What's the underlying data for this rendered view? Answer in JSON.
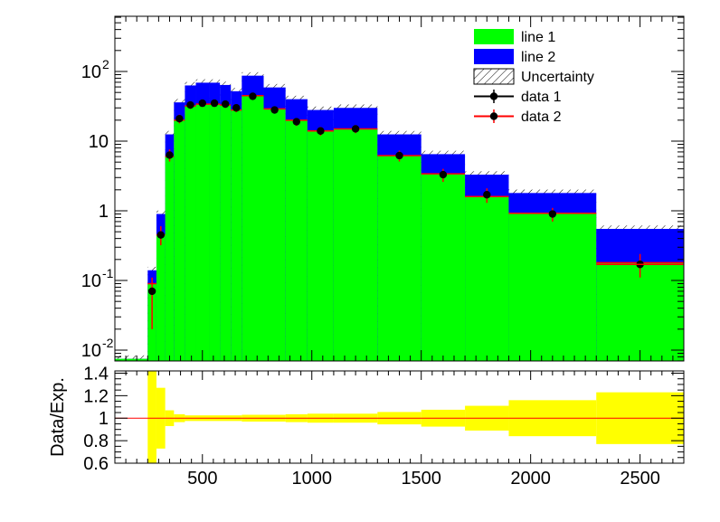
{
  "chart_data": [
    {
      "type": "histogram-stack",
      "scale": "log",
      "ylim": [
        0.0075,
        600
      ],
      "xlim": [
        100,
        2700
      ],
      "colors": {
        "line_1": "#00ff00",
        "line_2": "#0000ff",
        "data_1": "#000000",
        "data_2": "#ff0000"
      },
      "legend": {
        "position": "top-right",
        "entries": [
          {
            "key": "line_1",
            "label": "line 1",
            "style": "fill"
          },
          {
            "key": "line_2",
            "label": "line 2",
            "style": "fill"
          },
          {
            "key": "uncertainty",
            "label": "Uncertainty",
            "style": "hatch"
          },
          {
            "key": "data_1",
            "label": "data 1",
            "style": "marker"
          },
          {
            "key": "data_2",
            "label": "data 2",
            "style": "marker"
          }
        ]
      },
      "y_ticks": [
        {
          "value": 0.01,
          "label_base": "10",
          "label_exp": "-2"
        },
        {
          "value": 0.1,
          "label_base": "10",
          "label_exp": "-1"
        },
        {
          "value": 1,
          "label_base": "1",
          "label_exp": ""
        },
        {
          "value": 10,
          "label_base": "10",
          "label_exp": ""
        },
        {
          "value": 100,
          "label_base": "10",
          "label_exp": "2"
        }
      ],
      "bins": [
        {
          "lo": 100,
          "hi": 250,
          "line1": 0.0075,
          "total": 0.0075
        },
        {
          "lo": 250,
          "hi": 290,
          "line1": 0.09,
          "total": 0.14
        },
        {
          "lo": 290,
          "hi": 330,
          "line1": 0.45,
          "total": 0.9
        },
        {
          "lo": 330,
          "hi": 370,
          "line1": 6,
          "total": 12.5
        },
        {
          "lo": 370,
          "hi": 420,
          "line1": 20,
          "total": 36
        },
        {
          "lo": 420,
          "hi": 470,
          "line1": 32,
          "total": 63
        },
        {
          "lo": 470,
          "hi": 530,
          "line1": 34,
          "total": 69
        },
        {
          "lo": 530,
          "hi": 580,
          "line1": 34,
          "total": 69
        },
        {
          "lo": 580,
          "hi": 630,
          "line1": 33,
          "total": 64
        },
        {
          "lo": 630,
          "hi": 680,
          "line1": 28,
          "total": 52
        },
        {
          "lo": 680,
          "hi": 780,
          "line1": 45,
          "total": 87
        },
        {
          "lo": 780,
          "hi": 880,
          "line1": 29,
          "total": 59
        },
        {
          "lo": 880,
          "hi": 980,
          "line1": 20,
          "total": 40
        },
        {
          "lo": 980,
          "hi": 1100,
          "line1": 14,
          "total": 28
        },
        {
          "lo": 1100,
          "hi": 1300,
          "line1": 15,
          "total": 30
        },
        {
          "lo": 1300,
          "hi": 1500,
          "line1": 6.2,
          "total": 12.5
        },
        {
          "lo": 1500,
          "hi": 1700,
          "line1": 3.4,
          "total": 6.5
        },
        {
          "lo": 1700,
          "hi": 1900,
          "line1": 1.6,
          "total": 3.3
        },
        {
          "lo": 1900,
          "hi": 2300,
          "line1": 0.92,
          "total": 1.8
        },
        {
          "lo": 2300,
          "hi": 2700,
          "line1": 0.18,
          "total": 0.55
        }
      ],
      "data_points": [
        {
          "x": 270,
          "y": 0.07,
          "err_lo": 0.05,
          "err_hi": 0.04
        },
        {
          "x": 310,
          "y": 0.45,
          "err_lo": 0.13,
          "err_hi": 0.15
        },
        {
          "x": 350,
          "y": 6.3,
          "err_lo": 1.2,
          "err_hi": 1.3
        },
        {
          "x": 395,
          "y": 21,
          "err_lo": 3,
          "err_hi": 3
        },
        {
          "x": 445,
          "y": 33,
          "err_lo": 4,
          "err_hi": 4
        },
        {
          "x": 500,
          "y": 35,
          "err_lo": 4,
          "err_hi": 4
        },
        {
          "x": 555,
          "y": 35,
          "err_lo": 4,
          "err_hi": 4
        },
        {
          "x": 605,
          "y": 34,
          "err_lo": 4,
          "err_hi": 4
        },
        {
          "x": 655,
          "y": 30,
          "err_lo": 4,
          "err_hi": 4
        },
        {
          "x": 730,
          "y": 44,
          "err_lo": 4,
          "err_hi": 4
        },
        {
          "x": 830,
          "y": 28,
          "err_lo": 3,
          "err_hi": 3
        },
        {
          "x": 930,
          "y": 19,
          "err_lo": 2.5,
          "err_hi": 2.5
        },
        {
          "x": 1040,
          "y": 14,
          "err_lo": 2,
          "err_hi": 2
        },
        {
          "x": 1200,
          "y": 15,
          "err_lo": 2,
          "err_hi": 2
        },
        {
          "x": 1400,
          "y": 6.2,
          "err_lo": 1.1,
          "err_hi": 1.1
        },
        {
          "x": 1600,
          "y": 3.3,
          "err_lo": 0.7,
          "err_hi": 0.7
        },
        {
          "x": 1800,
          "y": 1.7,
          "err_lo": 0.4,
          "err_hi": 0.4
        },
        {
          "x": 2100,
          "y": 0.9,
          "err_lo": 0.2,
          "err_hi": 0.2
        },
        {
          "x": 2500,
          "y": 0.17,
          "err_lo": 0.06,
          "err_hi": 0.07
        }
      ]
    },
    {
      "type": "ratio",
      "ylabel": "Data/Exp.",
      "ylim": [
        0.6,
        1.42
      ],
      "xlim": [
        100,
        2700
      ],
      "colors": {
        "band": "#ffff00",
        "line": "#ff0000"
      },
      "y_ticks": [
        {
          "value": 0.6,
          "label": "0.6"
        },
        {
          "value": 0.8,
          "label": "0.8"
        },
        {
          "value": 1.0,
          "label": "1"
        },
        {
          "value": 1.2,
          "label": "1.2"
        },
        {
          "value": 1.4,
          "label": "1.4"
        }
      ],
      "x_ticks": [
        {
          "value": 500,
          "label": "500"
        },
        {
          "value": 1000,
          "label": "1000"
        },
        {
          "value": 1500,
          "label": "1500"
        },
        {
          "value": 2000,
          "label": "2000"
        },
        {
          "value": 2500,
          "label": "2500"
        }
      ],
      "reference": 1.0,
      "band": [
        {
          "lo": 250,
          "hi": 290,
          "down": 0.6,
          "up": 1.42
        },
        {
          "lo": 290,
          "hi": 330,
          "down": 0.73,
          "up": 1.27
        },
        {
          "lo": 330,
          "hi": 370,
          "down": 0.93,
          "up": 1.07
        },
        {
          "lo": 370,
          "hi": 420,
          "down": 0.965,
          "up": 1.035
        },
        {
          "lo": 420,
          "hi": 680,
          "down": 0.975,
          "up": 1.025
        },
        {
          "lo": 680,
          "hi": 780,
          "down": 0.97,
          "up": 1.03
        },
        {
          "lo": 780,
          "hi": 880,
          "down": 0.97,
          "up": 1.03
        },
        {
          "lo": 880,
          "hi": 980,
          "down": 0.965,
          "up": 1.035
        },
        {
          "lo": 980,
          "hi": 1100,
          "down": 0.96,
          "up": 1.04
        },
        {
          "lo": 1100,
          "hi": 1300,
          "down": 0.96,
          "up": 1.04
        },
        {
          "lo": 1300,
          "hi": 1500,
          "down": 0.945,
          "up": 1.055
        },
        {
          "lo": 1500,
          "hi": 1700,
          "down": 0.925,
          "up": 1.075
        },
        {
          "lo": 1700,
          "hi": 1900,
          "down": 0.89,
          "up": 1.11
        },
        {
          "lo": 1900,
          "hi": 2300,
          "down": 0.84,
          "up": 1.16
        },
        {
          "lo": 2300,
          "hi": 2700,
          "down": 0.77,
          "up": 1.23
        }
      ]
    }
  ]
}
